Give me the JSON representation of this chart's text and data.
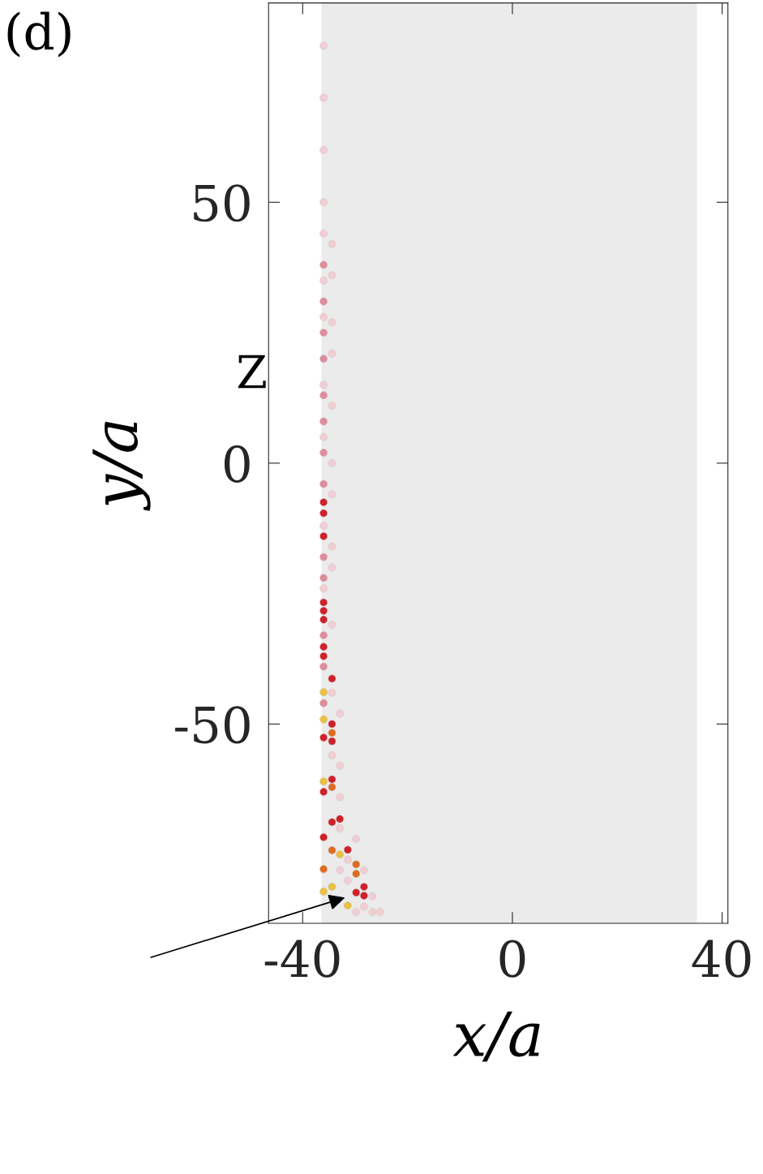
{
  "chart_data": {
    "type": "scatter",
    "xlabel": "x/a",
    "ylabel": "y/a",
    "xlim": [
      -46.5,
      41.1
    ],
    "xticks": [
      -40,
      0,
      40
    ],
    "ylim": [
      -88.2,
      88.2
    ],
    "yticks": [
      -50,
      0,
      50
    ],
    "grid": false,
    "marker": "circle",
    "bands": [
      {
        "axis": "x",
        "from": -36.4,
        "to": 35.2,
        "color": "#ebebeb"
      }
    ],
    "annotations": [
      "(d)",
      "Z"
    ],
    "series": [
      {
        "color": "#f2cdd4",
        "x": [
          -36.0,
          -36.0,
          -36.0,
          -36.0,
          -36.0,
          -36.0,
          -36.0,
          -36.0,
          -36.0,
          -36.0,
          -36.0,
          -34.4,
          -34.4,
          -34.4,
          -34.4,
          -34.4,
          -34.4,
          -34.4,
          -34.4,
          -34.4,
          -34.4,
          -34.4,
          -34.4,
          -32.9,
          -32.9,
          -32.9,
          -32.9,
          -32.9,
          -31.4,
          -31.4,
          -29.8,
          -29.8,
          -28.3,
          -28.3,
          -26.7,
          -26.7,
          -25.2
        ],
        "values": [
          80,
          70,
          60,
          50,
          44,
          35,
          28,
          15,
          5,
          -12,
          -24,
          42,
          36,
          27,
          21,
          11,
          0,
          -6,
          -16,
          -20,
          -31,
          -44,
          -56,
          -48,
          -58,
          -64,
          -70,
          -78,
          -76,
          -80,
          -72,
          -86,
          -78,
          -85,
          -83,
          -86,
          -86
        ]
      },
      {
        "color": "#df8c9a",
        "x": [
          -36.0,
          -36.0,
          -36.0,
          -36.0,
          -36.0,
          -36.0,
          -36.0,
          -36.0,
          -36.0,
          -36.0,
          -36.0,
          -36.0,
          -36.0
        ],
        "values": [
          38,
          31,
          25,
          20,
          13,
          8,
          2,
          -4,
          -18,
          -22,
          -33,
          -39,
          -46
        ]
      },
      {
        "color": "#d0202a",
        "x": [
          -36.0,
          -36.0,
          -36.0,
          -36.0,
          -36.0,
          -36.0,
          -36.0,
          -36.0,
          -36.0,
          -36.0,
          -36.0,
          -34.4,
          -34.4,
          -34.4,
          -34.4,
          -34.4,
          -32.9,
          -31.4,
          -28.3,
          -29.8,
          -28.3
        ],
        "values": [
          -7.5,
          -9.6,
          -14.0,
          -26.7,
          -28.3,
          -30.0,
          -35.2,
          -37.0,
          -52.6,
          -63.0,
          -71.7,
          -41.3,
          -50.0,
          -53.3,
          -60.6,
          -68.8,
          -68.2,
          -74.1,
          -81.2,
          -82.3,
          -82.9
        ]
      },
      {
        "color": "#e06a20",
        "x": [
          -34.4,
          -34.4,
          -34.4,
          -36.0,
          -29.8,
          -29.8
        ],
        "values": [
          -51.7,
          -62.1,
          -74.2,
          -77.8,
          -76.9,
          -78.7
        ]
      },
      {
        "color": "#ecc040",
        "x": [
          -36.0,
          -36.0,
          -36.0,
          -32.9,
          -34.4,
          -36.0,
          -31.4
        ],
        "values": [
          -43.9,
          -49.1,
          -61.0,
          -75.0,
          -81.2,
          -82.1,
          -84.8
        ]
      }
    ]
  }
}
